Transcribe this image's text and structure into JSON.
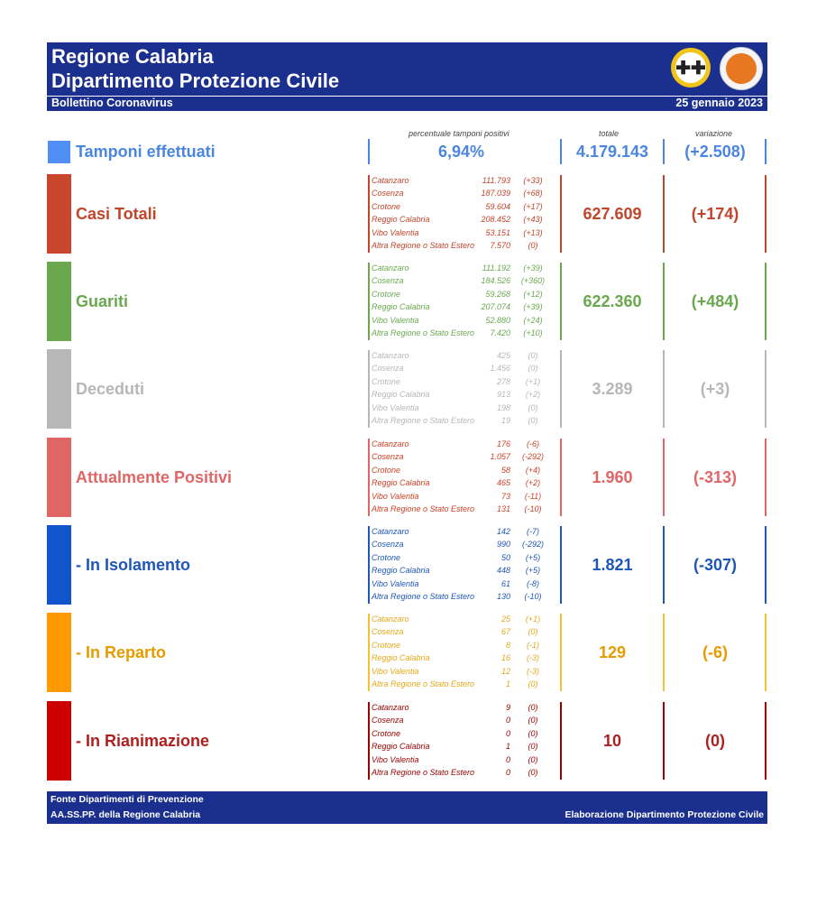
{
  "header": {
    "title_line1": "Regione Calabria",
    "title_line2": "Dipartimento Protezione Civile",
    "bulletin": "Bollettino Coronavirus",
    "date": "25 gennaio 2023",
    "logo1_icon": "regione-calabria-emblem-icon",
    "logo2_icon": "protezione-civile-logo-icon"
  },
  "column_headers": {
    "percent": "percentuale tamponi positivi",
    "total": "totale",
    "change": "variazione"
  },
  "tamponi": {
    "label": "Tamponi effettuati",
    "percent": "6,94%",
    "total": "4.179.143",
    "change": "(+2.508)",
    "color": "#4a86e0"
  },
  "sections": [
    {
      "label": "Casi Totali",
      "color": "#c0452b",
      "bar": "#c9452c",
      "line": "#c0452b",
      "prov_color": "#c0452b",
      "total": "627.609",
      "change": "(+174)",
      "rows": [
        {
          "name": "Catanzaro",
          "value": "111.793",
          "delta": "(+33)"
        },
        {
          "name": "Cosenza",
          "value": "187.039",
          "delta": "(+68)"
        },
        {
          "name": "Crotone",
          "value": "59.604",
          "delta": "(+17)"
        },
        {
          "name": "Reggio Calabria",
          "value": "208.452",
          "delta": "(+43)"
        },
        {
          "name": "Vibo Valentia",
          "value": "53.151",
          "delta": "(+13)"
        },
        {
          "name": "Altra Regione o Stato Estero",
          "value": "7.570",
          "delta": "(0)"
        }
      ]
    },
    {
      "label": "Guariti",
      "color": "#6aa84f",
      "bar": "#6aa84f",
      "line": "#6aa84f",
      "prov_color": "#6aa84f",
      "total": "622.360",
      "change": "(+484)",
      "rows": [
        {
          "name": "Catanzaro",
          "value": "111.192",
          "delta": "(+39)"
        },
        {
          "name": "Cosenza",
          "value": "184.526",
          "delta": "(+360)"
        },
        {
          "name": "Crotone",
          "value": "59.268",
          "delta": "(+12)"
        },
        {
          "name": "Reggio Calabria",
          "value": "207.074",
          "delta": "(+39)"
        },
        {
          "name": "Vibo Valentia",
          "value": "52.880",
          "delta": "(+24)"
        },
        {
          "name": "Altra Regione o Stato Estero",
          "value": "7.420",
          "delta": "(+10)"
        }
      ]
    },
    {
      "label": "Deceduti",
      "color": "#b7b7b7",
      "bar": "#b7b7b7",
      "line": "#b7b7b7",
      "prov_color": "#b7b7b7",
      "total": "3.289",
      "change": "(+3)",
      "rows": [
        {
          "name": "Catanzaro",
          "value": "425",
          "delta": "(0)"
        },
        {
          "name": "Cosenza",
          "value": "1.456",
          "delta": "(0)"
        },
        {
          "name": "Crotone",
          "value": "278",
          "delta": "(+1)"
        },
        {
          "name": "Reggio Calabria",
          "value": "913",
          "delta": "(+2)"
        },
        {
          "name": "Vibo Valentia",
          "value": "198",
          "delta": "(0)"
        },
        {
          "name": "Altra Regione o Stato Estero",
          "value": "19",
          "delta": "(0)"
        }
      ]
    },
    {
      "label": "Attualmente Positivi",
      "color": "#e06666",
      "bar": "#e06666",
      "line": "#e06666",
      "prov_color": "#cc4125",
      "total": "1.960",
      "change": "(-313)",
      "rows": [
        {
          "name": "Catanzaro",
          "value": "176",
          "delta": "(-6)"
        },
        {
          "name": "Cosenza",
          "value": "1.057",
          "delta": "(-292)"
        },
        {
          "name": "Crotone",
          "value": "58",
          "delta": "(+4)"
        },
        {
          "name": "Reggio Calabria",
          "value": "465",
          "delta": "(+2)"
        },
        {
          "name": "Vibo Valentia",
          "value": "73",
          "delta": "(-11)"
        },
        {
          "name": "Altra Regione o Stato Estero",
          "value": "131",
          "delta": "(-10)"
        }
      ]
    },
    {
      "label": "- In Isolamento",
      "color": "#1f57b5",
      "bar": "#1155cc",
      "line": "#1f57b5",
      "prov_color": "#1f57b5",
      "total": "1.821",
      "change": "(-307)",
      "rows": [
        {
          "name": "Catanzaro",
          "value": "142",
          "delta": "(-7)"
        },
        {
          "name": "Cosenza",
          "value": "990",
          "delta": "(-292)"
        },
        {
          "name": "Crotone",
          "value": "50",
          "delta": "(+5)"
        },
        {
          "name": "Reggio Calabria",
          "value": "448",
          "delta": "(+5)"
        },
        {
          "name": "Vibo Valentia",
          "value": "61",
          "delta": "(-8)"
        },
        {
          "name": "Altra Regione o Stato Estero",
          "value": "130",
          "delta": "(-10)"
        }
      ]
    },
    {
      "label": "- In Reparto",
      "color": "#e69b00",
      "bar": "#ff9900",
      "line": "#f1c232",
      "prov_color": "#e6a817",
      "total": "129",
      "change": "(-6)",
      "rows": [
        {
          "name": "Catanzaro",
          "value": "25",
          "delta": "(+1)"
        },
        {
          "name": "Cosenza",
          "value": "67",
          "delta": "(0)"
        },
        {
          "name": "Crotone",
          "value": "8",
          "delta": "(-1)"
        },
        {
          "name": "Reggio Calabria",
          "value": "16",
          "delta": "(-3)"
        },
        {
          "name": "Vibo Valentia",
          "value": "12",
          "delta": "(-3)"
        },
        {
          "name": "Altra Regione o Stato Estero",
          "value": "1",
          "delta": "(0)"
        }
      ]
    },
    {
      "label": "- In Rianimazione",
      "color": "#b01f1f",
      "bar": "#cc0000",
      "line": "#990000",
      "prov_color": "#990000",
      "total": "10",
      "change": "(0)",
      "rows": [
        {
          "name": "Catanzaro",
          "value": "9",
          "delta": "(0)"
        },
        {
          "name": "Cosenza",
          "value": "0",
          "delta": "(0)"
        },
        {
          "name": "Crotone",
          "value": "0",
          "delta": "(0)"
        },
        {
          "name": "Reggio Calabria",
          "value": "1",
          "delta": "(0)"
        },
        {
          "name": "Vibo Valentia",
          "value": "0",
          "delta": "(0)"
        },
        {
          "name": "Altra Regione o Stato Estero",
          "value": "0",
          "delta": "(0)"
        }
      ]
    }
  ],
  "footer": {
    "source_line1": "Fonte Dipartimenti di Prevenzione",
    "source_line2": "AA.SS.PP.  della Regione Calabria",
    "credit": "Elaborazione Dipartimento Protezione Civile"
  }
}
